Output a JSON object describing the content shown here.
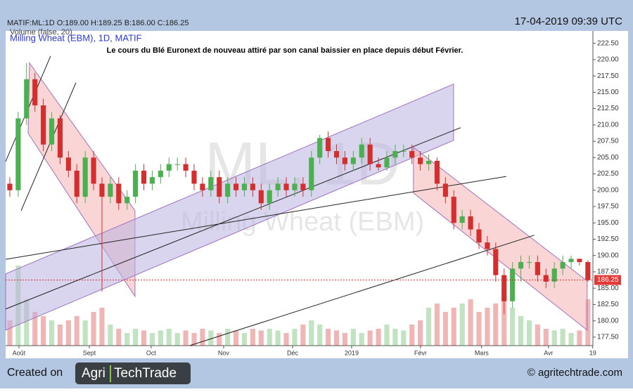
{
  "chart_data": {
    "type": "candlestick",
    "symbol_line": "MATIF:ML:1D O:189.00 H:189.25 B:186.00 C:186.25",
    "volume_label": "Volume (false, 20)",
    "title": "Milling Wheat (EBM), 1D, MATIF",
    "annotation": "Le cours du Blé Euronext de nouveau attiré par son canal baissier en place depuis début Février.",
    "timestamp": "17-04-2019 09:39 UTC",
    "watermark": [
      "ML, 1D",
      "Milling Wheat (EBM)"
    ],
    "up_color": "#4caf50",
    "down_color": "#d32f2f",
    "open": [
      201,
      200,
      211,
      217,
      213,
      207,
      211,
      205,
      203,
      199,
      205,
      201,
      199,
      201,
      198,
      199,
      203,
      201,
      202,
      203,
      204,
      204,
      203,
      201,
      200,
      202,
      199,
      201,
      200,
      201,
      200,
      198,
      200,
      201,
      200,
      201,
      200,
      205,
      208,
      206,
      205,
      204,
      205,
      207,
      204,
      203.5,
      205,
      206,
      206,
      205,
      204,
      204.5,
      201,
      199,
      195,
      196,
      194,
      192,
      191,
      187,
      183,
      188,
      189,
      189,
      187,
      186,
      188,
      189,
      189.5,
      189
    ],
    "high": [
      202,
      212,
      219.5,
      218,
      214,
      212,
      211.5,
      206,
      204,
      206,
      206,
      202,
      202,
      202,
      200,
      204,
      204,
      203,
      204,
      205,
      205,
      205,
      204,
      202,
      203,
      203,
      202,
      202,
      202,
      202,
      201,
      201,
      202,
      202,
      202,
      202,
      206,
      208.5,
      209,
      207,
      206,
      206,
      208,
      208,
      205,
      206,
      207,
      207,
      207,
      206,
      205.5,
      205,
      202,
      200,
      197,
      197,
      195,
      193,
      192,
      188,
      189,
      190,
      190,
      190,
      188,
      189,
      190,
      190,
      189.5,
      189.25
    ],
    "low": [
      199,
      199,
      210,
      212,
      206,
      206,
      204,
      202,
      198,
      198,
      200,
      184.5,
      198,
      197,
      197,
      198,
      200,
      200,
      201,
      202,
      203,
      202,
      200,
      199,
      199,
      198,
      198,
      199,
      199,
      199,
      197,
      197,
      199,
      199,
      199,
      199,
      199,
      204,
      205,
      204,
      203,
      203,
      204,
      203,
      203,
      203,
      204,
      205,
      204,
      203,
      203,
      200,
      198,
      194,
      194,
      193,
      191,
      190,
      186,
      181,
      182,
      186,
      188,
      186,
      185,
      185,
      187,
      188,
      188.5,
      186
    ],
    "close": [
      200,
      211,
      217,
      213,
      207,
      211,
      205,
      203,
      199,
      205,
      201,
      199,
      201,
      198,
      199,
      203,
      201,
      202,
      203,
      204,
      204,
      203,
      201,
      200,
      202,
      199,
      201,
      200,
      201,
      200,
      198,
      200,
      201,
      200,
      201,
      200,
      205,
      208,
      206,
      205,
      204,
      205,
      207,
      204,
      203.5,
      205,
      206,
      206,
      205,
      204,
      204.5,
      201,
      199,
      195,
      196,
      194,
      192,
      191,
      187,
      183,
      188,
      189,
      189,
      187,
      186,
      188,
      189,
      189.5,
      189,
      186.25
    ],
    "volume": [
      30,
      95,
      55,
      40,
      35,
      30,
      25,
      30,
      35,
      30,
      40,
      45,
      25,
      20,
      15,
      20,
      18,
      15,
      18,
      20,
      15,
      18,
      15,
      20,
      18,
      15,
      20,
      18,
      15,
      20,
      18,
      20,
      18,
      15,
      20,
      25,
      30,
      25,
      20,
      18,
      15,
      20,
      15,
      18,
      20,
      25,
      20,
      18,
      25,
      30,
      45,
      50,
      40,
      45,
      50,
      55,
      40,
      45,
      50,
      60,
      45,
      35,
      30,
      25,
      20,
      18,
      20,
      15,
      18,
      55
    ],
    "vlim": [
      0,
      100
    ],
    "xlim": [
      -0.5,
      69.6
    ],
    "ylim": [
      176.2,
      224.4
    ],
    "xticks": [
      {
        "value": 1.09,
        "label": "Août"
      },
      {
        "value": 9.49,
        "label": "Sept"
      },
      {
        "value": 16.87,
        "label": "Oct"
      },
      {
        "value": 25.52,
        "label": "Nov"
      },
      {
        "value": 33.75,
        "label": "Déc"
      },
      {
        "value": 40.8,
        "label": "2019"
      },
      {
        "value": 49.02,
        "label": "Févr"
      },
      {
        "value": 56.32,
        "label": "Mars"
      },
      {
        "value": 64.3,
        "label": "Avr"
      },
      {
        "value": 69.58,
        "label": "19"
      }
    ],
    "yticks": [
      {
        "value": 177.5,
        "label": "177.50"
      },
      {
        "value": 180,
        "label": "180.00"
      },
      {
        "value": 182.5,
        "label": "182.50"
      },
      {
        "value": 185,
        "label": "185.00"
      },
      {
        "value": 187.5,
        "label": "187.50"
      },
      {
        "value": 190,
        "label": "190.00"
      },
      {
        "value": 192.5,
        "label": "192.50"
      },
      {
        "value": 195,
        "label": "195.00"
      },
      {
        "value": 197.5,
        "label": "197.50"
      },
      {
        "value": 200,
        "label": "200.00"
      },
      {
        "value": 202.5,
        "label": "202.50"
      },
      {
        "value": 205,
        "label": "205.00"
      },
      {
        "value": 207.5,
        "label": "207.50"
      },
      {
        "value": 210,
        "label": "210.00"
      },
      {
        "value": 212.5,
        "label": "212.50"
      },
      {
        "value": 215,
        "label": "215.00"
      },
      {
        "value": 217.5,
        "label": "217.50"
      },
      {
        "value": 220,
        "label": "220.00"
      },
      {
        "value": 222.5,
        "label": "222.50"
      }
    ],
    "channels": [
      {
        "color": "#f6b3b3",
        "x": [
          2.35,
          14.94,
          14.94,
          2.19
        ],
        "y": [
          219.49,
          196.88,
          183.75,
          208.72
        ]
      },
      {
        "color": "#b9b2e0",
        "x": [
          -0.5,
          52.97,
          52.97,
          -0.5
        ],
        "y": [
          187.19,
          216.26,
          207.64,
          178.58
        ]
      },
      {
        "color": "#f6b3b3",
        "x": [
          48.18,
          68.91,
          68.91,
          48.18
        ],
        "y": [
          206.57,
          186.11,
          178.58,
          199.57
        ]
      }
    ],
    "trendlines": [
      {
        "x": [
          -0.5,
          59.26
        ],
        "y": [
          189.42,
          202.12
        ]
      },
      {
        "x": [
          -0.5,
          53.8
        ],
        "y": [
          181.81,
          209.58
        ]
      },
      {
        "x": [
          21.49,
          62.6
        ],
        "y": [
          176.21,
          193.11
        ]
      },
      {
        "x": [
          -0.5,
          4.87
        ],
        "y": [
          204.41,
          220.56
        ]
      },
      {
        "x": [
          1.35,
          7.89
        ],
        "y": [
          196.88,
          216.47
        ]
      }
    ]
  },
  "footer": {
    "created": "Created on",
    "logo": [
      "Agri",
      "TechTrade"
    ],
    "site": "© agritechtrade.com"
  }
}
